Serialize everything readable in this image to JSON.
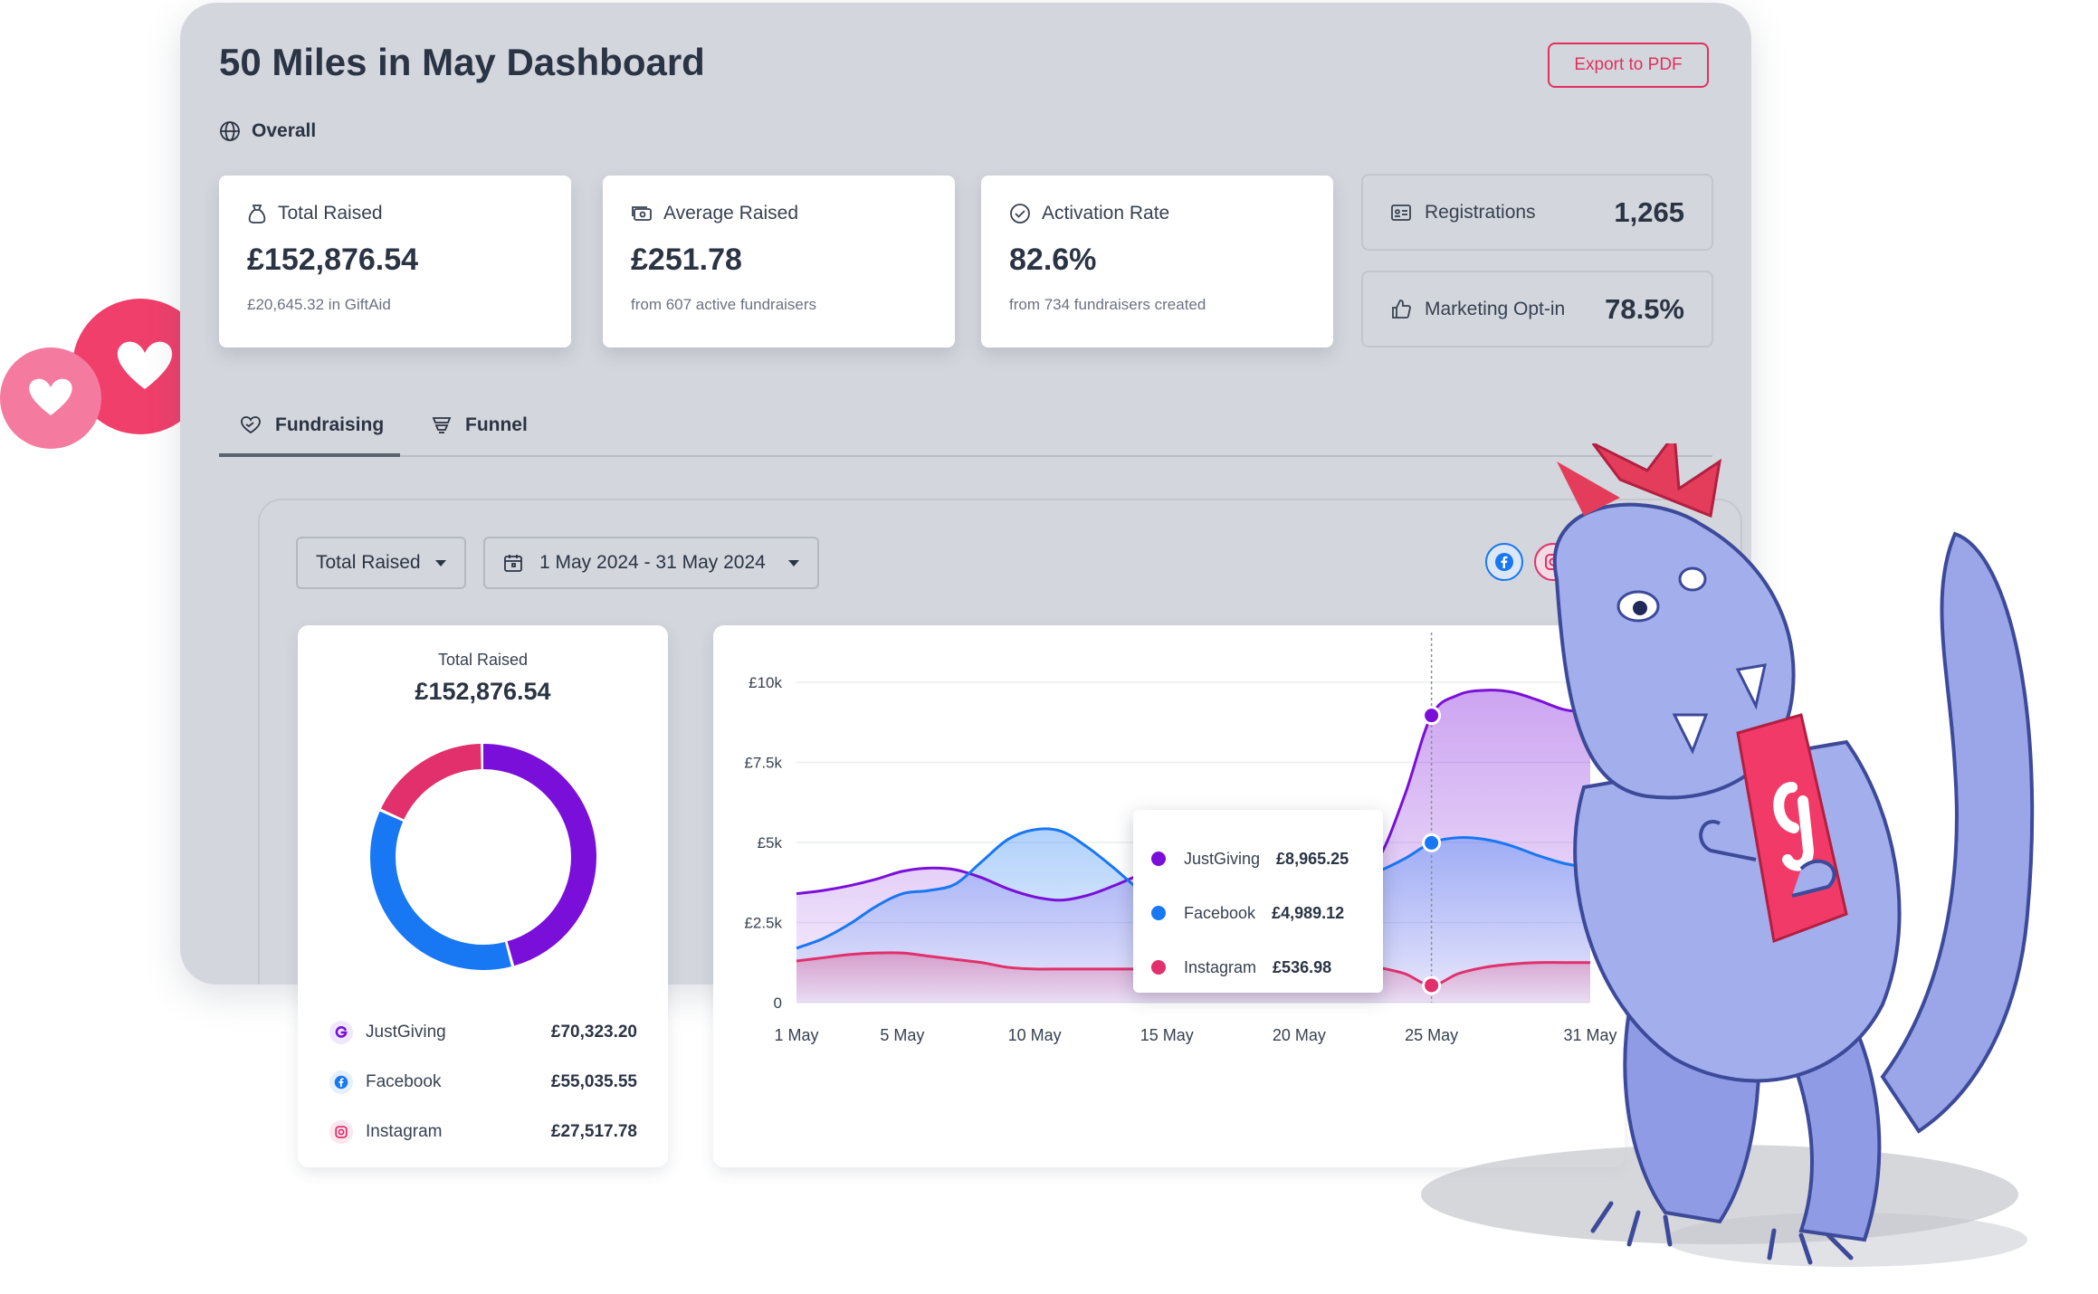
{
  "header": {
    "title": "50 Miles in May Dashboard",
    "export_label": "Export to PDF",
    "scope_label": "Overall"
  },
  "stats": {
    "total_raised": {
      "label": "Total Raised",
      "value": "£152,876.54",
      "sub": "£20,645.32 in GiftAid",
      "icon": "money-bag-icon"
    },
    "average_raised": {
      "label": "Average Raised",
      "value": "£251.78",
      "sub": "from 607 active fundraisers",
      "icon": "cash-icon"
    },
    "activation_rate": {
      "label": "Activation Rate",
      "value": "82.6%",
      "sub": "from 734 fundraisers created",
      "icon": "check-circle-icon"
    },
    "registrations": {
      "label": "Registrations",
      "value": "1,265",
      "icon": "id-card-icon"
    },
    "marketing_optin": {
      "label": "Marketing Opt-in",
      "value": "78.5%",
      "icon": "thumbs-up-icon"
    }
  },
  "tabs": [
    {
      "label": "Fundraising",
      "icon": "heart-hand-icon",
      "active": true
    },
    {
      "label": "Funnel",
      "icon": "funnel-icon",
      "active": false
    }
  ],
  "filters": {
    "metric": "Total Raised",
    "date_range": "1 May 2024 - 31 May 2024"
  },
  "social_filters": [
    {
      "name": "facebook-filter",
      "icon": "facebook-icon",
      "color": "#1877f2"
    },
    {
      "name": "instagram-filter",
      "icon": "instagram-icon",
      "color": "#e1306c"
    },
    {
      "name": "justgiving-filter",
      "icon": "justgiving-icon",
      "color": "#7a0fd9"
    }
  ],
  "donut": {
    "title": "Total Raised",
    "total": "£152,876.54",
    "segments": [
      {
        "name": "JustGiving",
        "amount": "£70,323.20",
        "value": 70323.2,
        "color": "#7a0fd9",
        "icon": "justgiving-icon"
      },
      {
        "name": "Facebook",
        "amount": "£55,035.55",
        "value": 55035.55,
        "color": "#1877f2",
        "icon": "facebook-icon"
      },
      {
        "name": "Instagram",
        "amount": "£27,517.78",
        "value": 27517.78,
        "color": "#e1306c",
        "icon": "instagram-icon"
      }
    ]
  },
  "chart_data": {
    "type": "area",
    "x": [
      "1 May",
      "2 May",
      "3 May",
      "4 May",
      "5 May",
      "6 May",
      "7 May",
      "8 May",
      "9 May",
      "10 May",
      "11 May",
      "12 May",
      "13 May",
      "14 May",
      "15 May",
      "16 May",
      "17 May",
      "18 May",
      "19 May",
      "20 May",
      "21 May",
      "22 May",
      "23 May",
      "24 May",
      "25 May",
      "26 May",
      "27 May",
      "28 May",
      "29 May",
      "30 May",
      "31 May"
    ],
    "x_tick_labels": [
      "1 May",
      "5 May",
      "10 May",
      "15 May",
      "20 May",
      "25 May",
      "31 May"
    ],
    "y_ticks": [
      "0",
      "£2.5k",
      "£5k",
      "£7.5k",
      "£10k"
    ],
    "ylim": [
      0,
      10000
    ],
    "series": [
      {
        "name": "JustGiving",
        "color": "#7a0fd9",
        "values": [
          3400,
          3500,
          3650,
          3850,
          4100,
          4200,
          4150,
          3900,
          3550,
          3300,
          3200,
          3350,
          3650,
          4000,
          4300,
          4500,
          4600,
          4500,
          4300,
          3900,
          3800,
          3900,
          4500,
          6500,
          8965,
          9600,
          9750,
          9700,
          9450,
          9150,
          9050
        ]
      },
      {
        "name": "Facebook",
        "color": "#1877f2",
        "values": [
          1700,
          2000,
          2450,
          3000,
          3400,
          3500,
          3700,
          4400,
          5100,
          5400,
          5350,
          4850,
          4200,
          3500,
          3000,
          2900,
          2900,
          2950,
          3100,
          3300,
          3500,
          3800,
          4100,
          4500,
          4989,
          5150,
          5100,
          4900,
          4600,
          4350,
          4200
        ]
      },
      {
        "name": "Instagram",
        "color": "#e1306c",
        "values": [
          1300,
          1400,
          1500,
          1550,
          1550,
          1450,
          1350,
          1250,
          1100,
          1050,
          1050,
          1050,
          1050,
          1050,
          1050,
          1100,
          1300,
          1500,
          1600,
          1600,
          1500,
          1300,
          1100,
          900,
          537,
          900,
          1100,
          1200,
          1250,
          1250,
          1250
        ]
      }
    ],
    "highlight_index": 24,
    "tooltip": [
      {
        "name": "JustGiving",
        "value": "£8,965.25",
        "color": "#7a0fd9"
      },
      {
        "name": "Facebook",
        "value": "£4,989.12",
        "color": "#1877f2"
      },
      {
        "name": "Instagram",
        "value": "£536.98",
        "color": "#e1306c"
      }
    ]
  }
}
